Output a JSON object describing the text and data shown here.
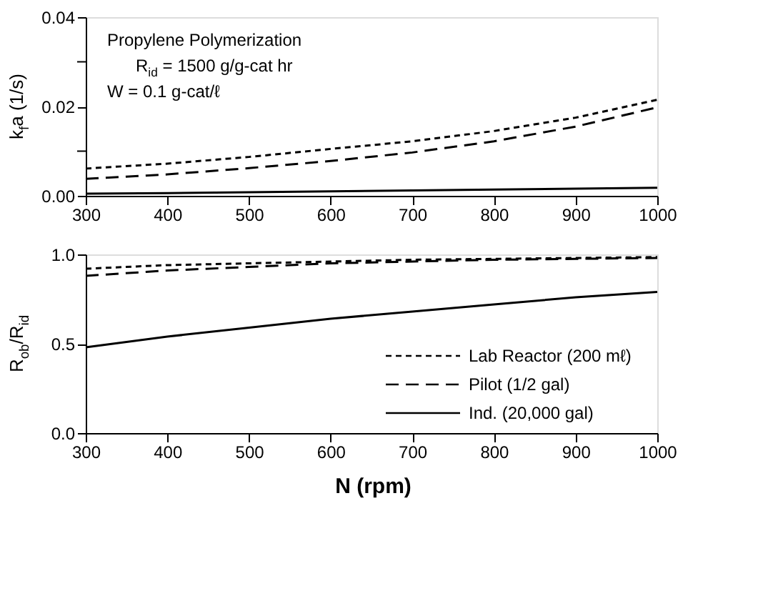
{
  "chart_data": [
    {
      "type": "line",
      "x": [
        300,
        400,
        500,
        600,
        700,
        800,
        900,
        1000
      ],
      "ylabel": "k$_{f}$a (1/s)",
      "xlim": [
        300,
        1000
      ],
      "xticks": [
        300,
        400,
        500,
        600,
        700,
        800,
        900,
        1000
      ],
      "ylim": [
        0,
        0.04
      ],
      "yticks": [
        {
          "value": 0,
          "label": "0.00"
        },
        {
          "value": 0.01,
          "label": null
        },
        {
          "value": 0.02,
          "label": "0.02"
        },
        {
          "value": 0.03,
          "label": null
        },
        {
          "value": 0.04,
          "label": "0.04"
        }
      ],
      "grid": false,
      "legend": false,
      "annotations": [
        "Propylene Polymerization",
        "R$_{id}$ = 1500 g/g-cat hr",
        "W = 0.1 g-cat/ℓ"
      ],
      "series": [
        {
          "color": "#000000",
          "line_style": "dotted",
          "values": [
            0.0061,
            0.0072,
            0.0087,
            0.0105,
            0.0122,
            0.0145,
            0.0175,
            0.0215
          ]
        },
        {
          "color": "#000000",
          "line_style": "dashed",
          "values": [
            0.0038,
            0.0048,
            0.0062,
            0.0078,
            0.0097,
            0.0122,
            0.0155,
            0.0198
          ]
        },
        {
          "color": "#000000",
          "line_style": "solid",
          "values": [
            0.0005,
            0.0006,
            0.0008,
            0.001,
            0.0012,
            0.0014,
            0.0016,
            0.0018
          ]
        }
      ]
    },
    {
      "type": "line",
      "x": [
        300,
        400,
        500,
        600,
        700,
        800,
        900,
        1000
      ],
      "xlabel": "N (rpm)",
      "ylabel": "R$_{ob}$/R$_{id}$",
      "xlim": [
        300,
        1000
      ],
      "xticks": [
        300,
        400,
        500,
        600,
        700,
        800,
        900,
        1000
      ],
      "ylim": [
        0,
        1
      ],
      "yticks": [
        {
          "value": 0,
          "label": "0.0"
        },
        0.5,
        {
          "value": 1,
          "label": "1.0"
        }
      ],
      "grid": false,
      "legend": "bottom right",
      "series": [
        {
          "name": "Lab Reactor (200 mℓ)",
          "color": "#000000",
          "line_style": "dotted",
          "values": [
            0.92,
            0.94,
            0.95,
            0.96,
            0.97,
            0.975,
            0.98,
            0.985
          ]
        },
        {
          "name": "Pilot (1/2 gal)",
          "color": "#000000",
          "line_style": "dashed",
          "values": [
            0.88,
            0.91,
            0.93,
            0.95,
            0.96,
            0.97,
            0.975,
            0.98
          ]
        },
        {
          "name": "Ind. (20,000 gal)",
          "color": "#000000",
          "line_style": "solid",
          "values": [
            0.48,
            0.54,
            0.59,
            0.64,
            0.68,
            0.72,
            0.76,
            0.79
          ]
        }
      ]
    }
  ]
}
